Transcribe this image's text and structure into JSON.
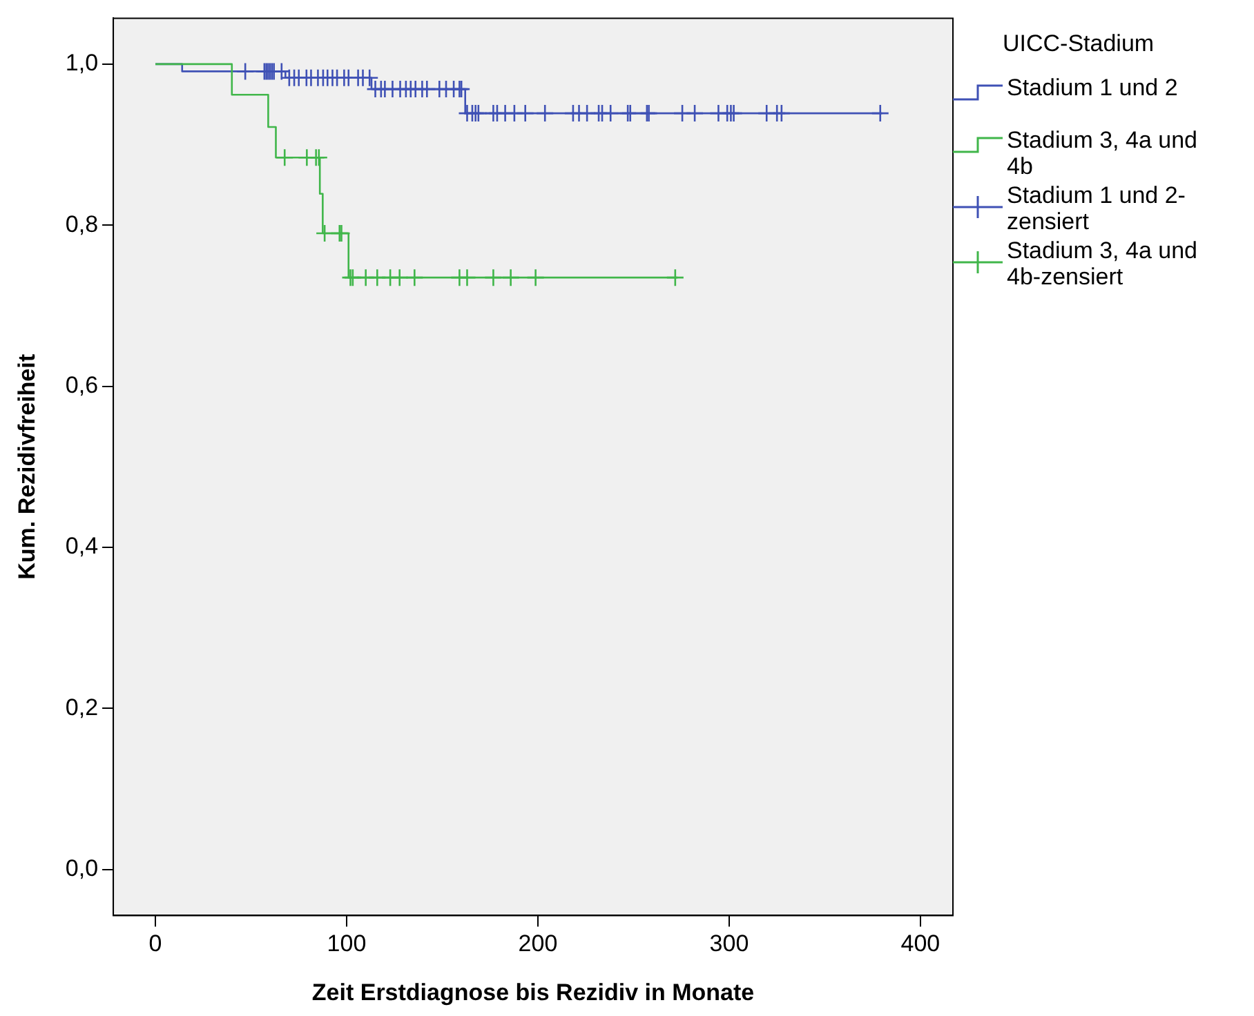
{
  "chart_data": {
    "type": "step",
    "xlabel": "Zeit Erstdiagnose bis Rezidiv in Monate",
    "ylabel": "Kum. Rezidivfreiheit",
    "legend_title": "UICC-Stadium",
    "xlim": [
      -22,
      417
    ],
    "ylim": [
      -0.057,
      1.057
    ],
    "xticks": [
      0,
      100,
      200,
      300,
      400
    ],
    "yticks": [
      {
        "value": 0,
        "label": "0,0"
      },
      {
        "value": 0.2,
        "label": "0,2"
      },
      {
        "value": 0.4,
        "label": "0,4"
      },
      {
        "value": 0.6,
        "label": "0,6"
      },
      {
        "value": 0.8,
        "label": "0,8"
      },
      {
        "value": 1,
        "label": "1,0"
      }
    ],
    "grid": false,
    "legend": "right",
    "series": [
      {
        "name": "Stadium 1 und 2",
        "type": "step",
        "color": "#3f51b5",
        "x": [
          0,
          14,
          68,
          113,
          162,
          380
        ],
        "values": [
          1,
          0.991,
          0.983,
          0.969,
          0.939,
          0.939
        ]
      },
      {
        "name": "Stadium 3, 4a und 4b",
        "type": "step",
        "color": "#40b64a",
        "x": [
          0,
          40,
          59,
          63,
          86,
          87.5,
          101,
          273
        ],
        "values": [
          1,
          0.962,
          0.922,
          0.884,
          0.839,
          0.79,
          0.735,
          0.735
        ]
      },
      {
        "name": "Stadium 1 und 2-zensiert",
        "type": "scatter",
        "marker": "cross",
        "color": "#3f51b5",
        "x": [
          47,
          57,
          58,
          59,
          60,
          61,
          62,
          66,
          70,
          72.6,
          75,
          79,
          81.4,
          85,
          87.7,
          90,
          92.6,
          95,
          98.7,
          101,
          106,
          108.5,
          112,
          115,
          118,
          120,
          124,
          128,
          131,
          133.5,
          136,
          139.5,
          142,
          148.5,
          152,
          156,
          159,
          160,
          163,
          165.7,
          167.4,
          168.9,
          176.7,
          178.7,
          182.9,
          187.7,
          193.4,
          203.7,
          218.4,
          221.5,
          225.7,
          231.8,
          233.6,
          238,
          247,
          248.3,
          257,
          258,
          275.5,
          282,
          294.4,
          299,
          300.9,
          302.4,
          319.6,
          325,
          327.4,
          379
        ],
        "values": [
          0.991,
          0.991,
          0.991,
          0.991,
          0.991,
          0.991,
          0.991,
          0.991,
          0.983,
          0.983,
          0.983,
          0.983,
          0.983,
          0.983,
          0.983,
          0.983,
          0.983,
          0.983,
          0.983,
          0.983,
          0.983,
          0.983,
          0.983,
          0.969,
          0.969,
          0.969,
          0.969,
          0.969,
          0.969,
          0.969,
          0.969,
          0.969,
          0.969,
          0.969,
          0.969,
          0.969,
          0.969,
          0.969,
          0.939,
          0.939,
          0.939,
          0.939,
          0.939,
          0.939,
          0.939,
          0.939,
          0.939,
          0.939,
          0.939,
          0.939,
          0.939,
          0.939,
          0.939,
          0.939,
          0.939,
          0.939,
          0.939,
          0.939,
          0.939,
          0.939,
          0.939,
          0.939,
          0.939,
          0.939,
          0.939,
          0.939,
          0.939,
          0.939
        ]
      },
      {
        "name": "Stadium 3, 4a und 4b-zensiert",
        "type": "scatter",
        "marker": "cross",
        "color": "#40b64a",
        "x": [
          67.6,
          79.2,
          84,
          85.5,
          88.5,
          96.3,
          97.3,
          102,
          103.2,
          110,
          116,
          122.8,
          127.7,
          135.5,
          159,
          163,
          176.7,
          185.8,
          198.8,
          271.8
        ],
        "values": [
          0.884,
          0.884,
          0.884,
          0.884,
          0.79,
          0.79,
          0.79,
          0.735,
          0.735,
          0.735,
          0.735,
          0.735,
          0.735,
          0.735,
          0.735,
          0.735,
          0.735,
          0.735,
          0.735,
          0.735
        ]
      }
    ]
  }
}
